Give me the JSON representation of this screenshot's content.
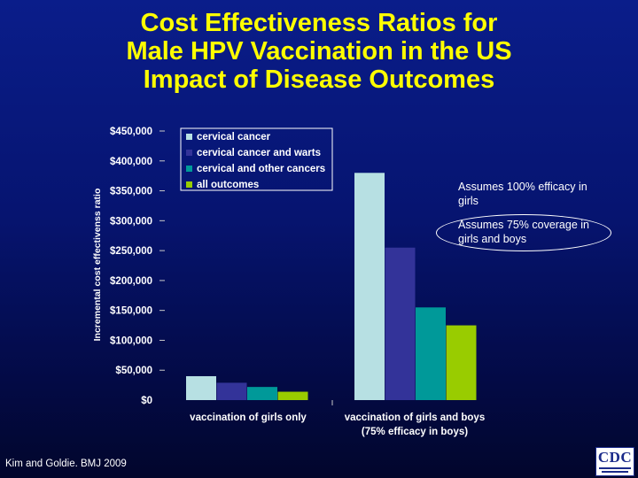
{
  "title_lines": [
    "Cost Effectiveness Ratios for",
    "Male HPV Vaccination in the US",
    "Impact of Disease Outcomes"
  ],
  "notes": {
    "efficacy": "Assumes 100% efficacy in girls",
    "coverage": "Assumes 75% coverage in girls and boys"
  },
  "citation": "Kim and Goldie.  BMJ 2009",
  "logo_text": "CDC",
  "colors": {
    "cervical_cancer": "#b7e0e3",
    "cervical_cancer_and_warts": "#333399",
    "cervical_and_other_cancers": "#009999",
    "all_outcomes": "#99cc00",
    "text": "#ffffff",
    "title": "#ffff00"
  },
  "chart_data": {
    "type": "bar",
    "title": "",
    "xlabel": "",
    "ylabel": "Incremental cost effectivenss ratio",
    "ylim": [
      0,
      450000
    ],
    "ytick_values": [
      0,
      50000,
      100000,
      150000,
      200000,
      250000,
      300000,
      350000,
      400000,
      450000
    ],
    "ytick_labels": [
      "$0",
      "$50,000",
      "$100,000",
      "$150,000",
      "$200,000",
      "$250,000",
      "$300,000",
      "$350,000",
      "$400,000",
      "$450,000"
    ],
    "categories": [
      [
        "vaccination of girls only"
      ],
      [
        "vaccination of girls and boys",
        "(75% efficacy in boys)"
      ]
    ],
    "series": [
      {
        "name": "cervical cancer",
        "color": "#b7e0e3",
        "values": [
          40000,
          380000
        ]
      },
      {
        "name": "cervical cancer and warts",
        "color": "#333399",
        "values": [
          29000,
          255000
        ]
      },
      {
        "name": "cervical and other cancers",
        "color": "#009999",
        "values": [
          22000,
          155000
        ]
      },
      {
        "name": "all outcomes",
        "color": "#99cc00",
        "values": [
          14000,
          125000
        ]
      }
    ],
    "legend_position": "top-left"
  }
}
